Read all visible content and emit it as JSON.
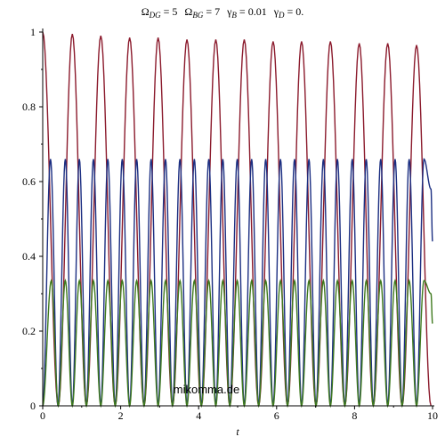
{
  "chart_data": {
    "type": "line",
    "title": {
      "parts": [
        {
          "sym": "Ω",
          "sub": "DG",
          "eq": " = 5"
        },
        {
          "sym": "Ω",
          "sub": "BG",
          "eq": " = 7"
        },
        {
          "sym": "γ",
          "sub": "B",
          "eq": " = 0.01"
        },
        {
          "sym": "γ",
          "sub": "D",
          "eq": " = 0."
        }
      ]
    },
    "xlabel": "t",
    "ylabel": "",
    "xlim": [
      0,
      10
    ],
    "ylim": [
      0,
      1
    ],
    "x_ticks": [
      0,
      2,
      4,
      6,
      8,
      10
    ],
    "y_ticks": [
      0,
      0.2,
      0.4,
      0.6,
      0.8,
      1
    ],
    "x_tick_labels": [
      "0",
      "2",
      "4",
      "6",
      "8",
      "10"
    ],
    "y_tick_labels": [
      "0",
      "0.2",
      "0.4",
      "0.6",
      "0.8",
      "1"
    ],
    "grid": false,
    "legend": "none",
    "annotation": "mikomma.de",
    "series": [
      {
        "color": "#8b1a2c",
        "x": [
          0,
          0.4,
          0.76,
          1.12,
          1.49,
          1.86,
          2.23,
          2.6,
          2.96,
          3.33,
          3.7,
          4.07,
          4.44,
          4.8,
          5.17,
          5.54,
          5.91,
          6.28,
          6.64,
          7.01,
          7.38,
          7.75,
          8.12,
          8.48,
          8.85,
          9.22,
          9.59,
          9.96
        ],
        "y": [
          1,
          0,
          0.995,
          0,
          0.99,
          0,
          0.985,
          0,
          0.985,
          0,
          0.98,
          0,
          0.98,
          0,
          0.98,
          0,
          0.975,
          0,
          0.975,
          0,
          0.975,
          0,
          0.97,
          0,
          0.97,
          0,
          0.965,
          0
        ]
      },
      {
        "color": "#1c2f82",
        "x": [
          0,
          0.2,
          0.39,
          0.58,
          0.76,
          0.94,
          1.12,
          1.3,
          1.49,
          1.67,
          1.86,
          2.04,
          2.23,
          2.41,
          2.6,
          2.78,
          2.96,
          3.15,
          3.33,
          3.52,
          3.7,
          3.89,
          4.07,
          4.26,
          4.44,
          4.62,
          4.8,
          4.99,
          5.17,
          5.36,
          5.54,
          5.72,
          5.91,
          6.1,
          6.28,
          6.46,
          6.64,
          6.83,
          7.01,
          7.2,
          7.38,
          7.56,
          7.75,
          7.94,
          8.12,
          8.3,
          8.48,
          8.67,
          8.85,
          9.04,
          9.22,
          9.4,
          9.59,
          9.78,
          9.96,
          10.0
        ],
        "y": [
          0,
          0.66,
          0,
          0.66,
          0,
          0.66,
          0,
          0.66,
          0,
          0.66,
          0,
          0.66,
          0,
          0.66,
          0,
          0.66,
          0,
          0.66,
          0,
          0.66,
          0,
          0.66,
          0,
          0.66,
          0,
          0.66,
          0,
          0.66,
          0,
          0.66,
          0,
          0.66,
          0,
          0.66,
          0,
          0.66,
          0,
          0.66,
          0,
          0.66,
          0,
          0.66,
          0,
          0.66,
          0,
          0.66,
          0,
          0.66,
          0,
          0.66,
          0,
          0.66,
          0,
          0.66,
          0.58,
          0.44
        ]
      },
      {
        "color": "#3f7a1e",
        "x": [
          0,
          0.22,
          0.4,
          0.58,
          0.76,
          0.94,
          1.12,
          1.3,
          1.49,
          1.67,
          1.86,
          2.04,
          2.23,
          2.41,
          2.6,
          2.78,
          2.96,
          3.15,
          3.33,
          3.52,
          3.7,
          3.89,
          4.07,
          4.26,
          4.44,
          4.62,
          4.8,
          4.99,
          5.17,
          5.36,
          5.54,
          5.72,
          5.91,
          6.1,
          6.28,
          6.46,
          6.64,
          6.83,
          7.01,
          7.2,
          7.38,
          7.56,
          7.75,
          7.94,
          8.12,
          8.3,
          8.48,
          8.67,
          8.85,
          9.04,
          9.22,
          9.4,
          9.59,
          9.78,
          9.96,
          10.0
        ],
        "y": [
          0,
          0.335,
          0,
          0.335,
          0,
          0.335,
          0,
          0.335,
          0,
          0.335,
          0,
          0.335,
          0,
          0.335,
          0,
          0.335,
          0,
          0.335,
          0,
          0.335,
          0,
          0.335,
          0,
          0.335,
          0,
          0.335,
          0,
          0.335,
          0,
          0.335,
          0,
          0.335,
          0,
          0.335,
          0,
          0.335,
          0,
          0.335,
          0,
          0.335,
          0,
          0.335,
          0,
          0.335,
          0,
          0.335,
          0,
          0.335,
          0,
          0.335,
          0,
          0.335,
          0,
          0.335,
          0.3,
          0.22
        ]
      },
      {
        "color": "#c0c0c0",
        "x": [
          0,
          10
        ],
        "y": [
          0,
          0
        ]
      }
    ]
  }
}
